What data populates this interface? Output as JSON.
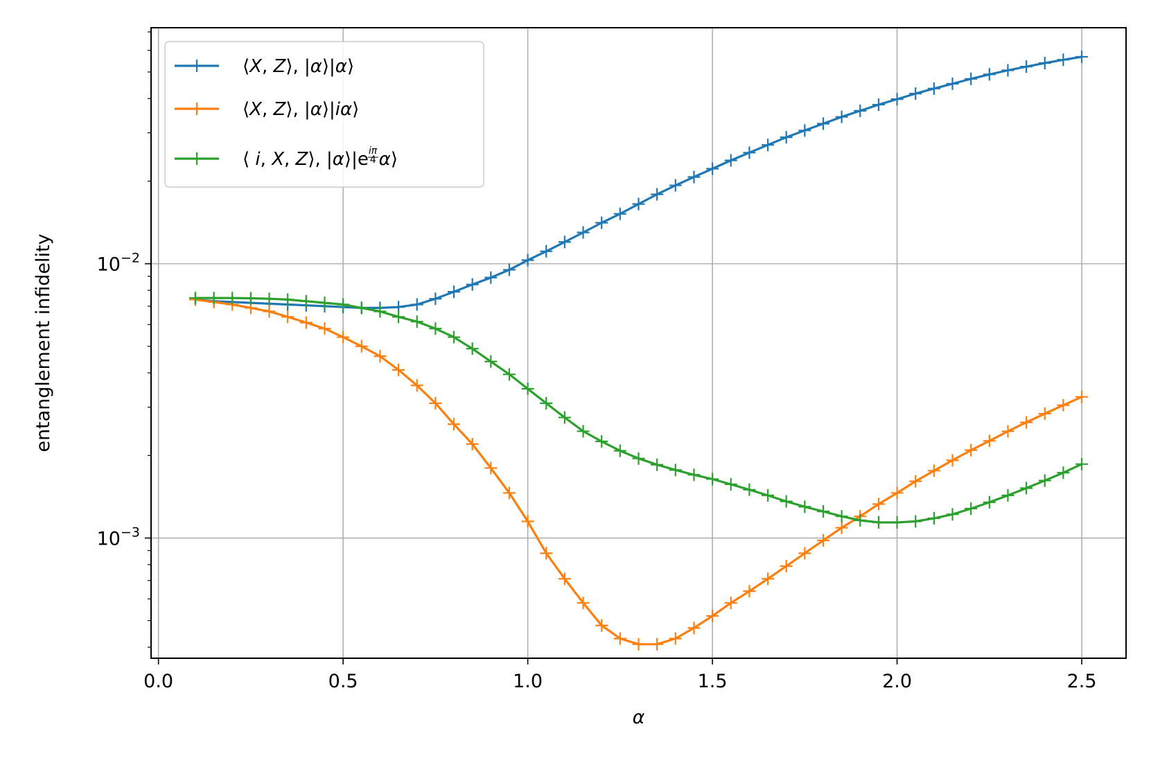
{
  "chart_data": {
    "type": "line",
    "xlabel": "α",
    "ylabel": "entanglement infidelity",
    "xlim": [
      -0.02,
      2.62
    ],
    "ylim": [
      0.0003646,
      0.0725
    ],
    "yscale": "log",
    "grid": true,
    "legend_position": "top-left",
    "x_ticks": [
      "0.0",
      "0.5",
      "1.0",
      "1.5",
      "2.0",
      "2.5"
    ],
    "y_ticks": [
      {
        "base": "10",
        "exp": "−2",
        "value": 0.01
      },
      {
        "base": "10",
        "exp": "−3",
        "value": 0.001
      }
    ],
    "marker": "+",
    "x": [
      0.1,
      0.15,
      0.2,
      0.25,
      0.3,
      0.35,
      0.4,
      0.45,
      0.5,
      0.55,
      0.6,
      0.65,
      0.7,
      0.75,
      0.8,
      0.85,
      0.9,
      0.95,
      1.0,
      1.05,
      1.1,
      1.15,
      1.2,
      1.25,
      1.3,
      1.35,
      1.4,
      1.45,
      1.5,
      1.55,
      1.6,
      1.65,
      1.7,
      1.75,
      1.8,
      1.85,
      1.9,
      1.95,
      2.0,
      2.05,
      2.1,
      2.15,
      2.2,
      2.25,
      2.3,
      2.35,
      2.4,
      2.45,
      2.5
    ],
    "series": [
      {
        "name": "⟨X,Z⟩, |α⟩|α⟩",
        "label_parts": [
          "⟨",
          "X",
          ", ",
          "Z",
          "⟩, |",
          "α",
          "⟩|",
          "α",
          "⟩"
        ],
        "color": "#1f77b4",
        "values": [
          0.0074,
          0.0073,
          0.00725,
          0.0072,
          0.00715,
          0.0071,
          0.00705,
          0.007,
          0.00695,
          0.0069,
          0.0069,
          0.00695,
          0.0071,
          0.00745,
          0.0079,
          0.0084,
          0.0089,
          0.0095,
          0.0103,
          0.0111,
          0.012,
          0.013,
          0.0141,
          0.0152,
          0.0165,
          0.0179,
          0.0193,
          0.0207,
          0.0222,
          0.0238,
          0.0254,
          0.0271,
          0.0289,
          0.0306,
          0.0324,
          0.0343,
          0.0361,
          0.038,
          0.0398,
          0.0417,
          0.0435,
          0.0453,
          0.0472,
          0.049,
          0.0507,
          0.0523,
          0.0539,
          0.0554,
          0.0568
        ]
      },
      {
        "name": "⟨X,Z⟩, |α⟩|iα⟩",
        "label_parts": [
          "⟨",
          "X",
          ", ",
          "Z",
          "⟩, |",
          "α",
          "⟩|",
          "iα",
          "⟩"
        ],
        "color": "#ff7f0e",
        "values": [
          0.0074,
          0.00725,
          0.0071,
          0.0069,
          0.0067,
          0.0064,
          0.0061,
          0.0058,
          0.0054,
          0.005,
          0.0046,
          0.0041,
          0.0036,
          0.0031,
          0.0026,
          0.0022,
          0.0018,
          0.00146,
          0.00115,
          0.00088,
          0.00071,
          0.00058,
          0.00048,
          0.00043,
          0.00041,
          0.00041,
          0.00043,
          0.00047,
          0.00052,
          0.00058,
          0.00064,
          0.00071,
          0.00079,
          0.00088,
          0.00098,
          0.00109,
          0.0012,
          0.00133,
          0.00146,
          0.00161,
          0.00176,
          0.00192,
          0.00209,
          0.00226,
          0.00245,
          0.00264,
          0.00284,
          0.00305,
          0.00327
        ]
      },
      {
        "name": "⟨ i,X,Z⟩, |α⟩|e^(iπ/4)α⟩",
        "label_parts": [
          "⟨ ",
          "i",
          ", ",
          "X",
          ", ",
          "Z",
          "⟩, |",
          "α",
          "⟩|e",
          "iπ",
          "4",
          "α",
          "⟩"
        ],
        "color": "#2ca02c",
        "values": [
          0.0075,
          0.0075,
          0.0075,
          0.00748,
          0.00745,
          0.0074,
          0.0073,
          0.0072,
          0.0071,
          0.0069,
          0.0067,
          0.0064,
          0.00615,
          0.0058,
          0.0054,
          0.0049,
          0.0044,
          0.00395,
          0.0035,
          0.0031,
          0.00275,
          0.00245,
          0.00225,
          0.00208,
          0.00195,
          0.00185,
          0.00177,
          0.0017,
          0.00164,
          0.00157,
          0.0015,
          0.00143,
          0.00136,
          0.0013,
          0.00125,
          0.0012,
          0.00116,
          0.00114,
          0.00114,
          0.00115,
          0.00118,
          0.00122,
          0.00128,
          0.00135,
          0.00143,
          0.00152,
          0.00162,
          0.00173,
          0.00186
        ]
      }
    ]
  }
}
